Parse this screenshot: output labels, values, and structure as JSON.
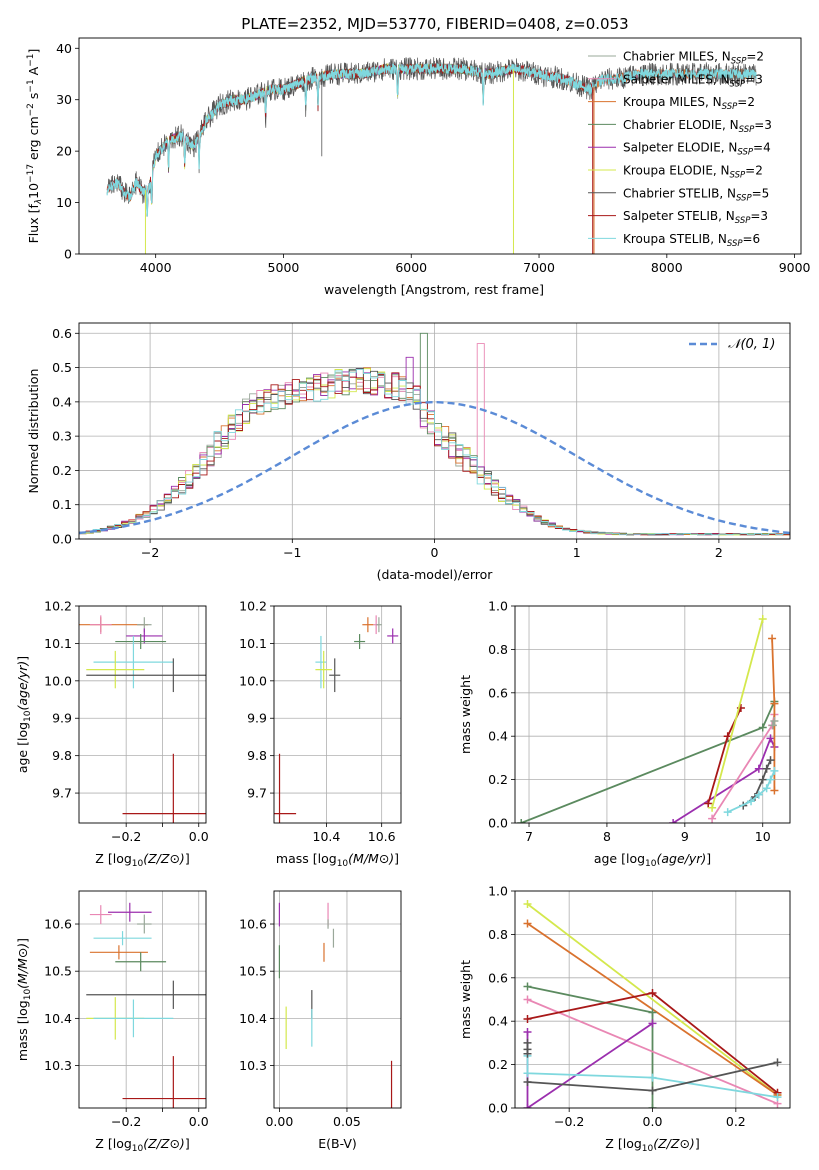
{
  "figure": {
    "title": "PLATE=2352, MJD=53770, FIBERID=0408, z=0.053"
  },
  "models": [
    {
      "name": "Chabrier MILES",
      "nssp": "2",
      "color": "#9aa89a"
    },
    {
      "name": "Salpeter MILES",
      "nssp": "3",
      "color": "#e987b4"
    },
    {
      "name": "Kroupa MILES",
      "nssp": "2",
      "color": "#d9722e"
    },
    {
      "name": "Chabrier ELODIE",
      "nssp": "3",
      "color": "#5b8a5f"
    },
    {
      "name": "Salpeter ELODIE",
      "nssp": "4",
      "color": "#9b2fae"
    },
    {
      "name": "Kroupa ELODIE",
      "nssp": "2",
      "color": "#d4e84d"
    },
    {
      "name": "Chabrier STELIB",
      "nssp": "5",
      "color": "#555555"
    },
    {
      "name": "Salpeter STELIB",
      "nssp": "3",
      "color": "#a81818"
    },
    {
      "name": "Kroupa STELIB",
      "nssp": "6",
      "color": "#7fd8de"
    }
  ],
  "chart_data": [
    {
      "id": "spectrum",
      "type": "line",
      "xlabel": "wavelength [Angstrom, rest frame]",
      "ylabel_parts": [
        "Flux [f",
        "λ",
        "10",
        "−17",
        " erg cm",
        "−2",
        " s",
        "−1",
        " A",
        "−1",
        "]"
      ],
      "xlim": [
        3400,
        9050
      ],
      "ylim": [
        0,
        42
      ],
      "xticks": [
        4000,
        5000,
        6000,
        7000,
        8000,
        9000
      ],
      "yticks": [
        0,
        10,
        20,
        30,
        40
      ],
      "legend_position": "right",
      "legend_suffix": "N",
      "legend_sub": "SSP",
      "continuum": {
        "x": [
          3600,
          3650,
          3700,
          3750,
          3800,
          3850,
          3900,
          3950,
          4000,
          4100,
          4200,
          4300,
          4400,
          4500,
          4600,
          4700,
          4800,
          4900,
          5000,
          5200,
          5400,
          5600,
          5800,
          6000,
          6200,
          6400,
          6600,
          6800,
          7000,
          7200,
          7300,
          7400,
          7500,
          7600,
          7800,
          8000,
          8200,
          8400,
          8600,
          8700
        ],
        "y": [
          12,
          13,
          14,
          12,
          11,
          14,
          12,
          13,
          19,
          22,
          23,
          21,
          26,
          29,
          30,
          30,
          31,
          32,
          32,
          34,
          35,
          35,
          36,
          36,
          36,
          36,
          35,
          36,
          35,
          34,
          33,
          32,
          34,
          34,
          35,
          35,
          35,
          35,
          35,
          35
        ]
      },
      "absorption_lines": [
        3934,
        3969,
        4101,
        4227,
        4340,
        4861,
        5175,
        5270,
        5893,
        6563
      ],
      "drops": [
        {
          "model": "Kroupa ELODIE",
          "x": 3920
        },
        {
          "model": "Kroupa ELODIE",
          "x": 6800
        },
        {
          "model": "Salpeter STELIB",
          "x": 7420
        },
        {
          "model": "Kroupa MILES",
          "x": 7430
        }
      ]
    },
    {
      "id": "residual-hist",
      "type": "line",
      "xlabel": "(data-model)/error",
      "ylabel": "Normed distribution",
      "xlim": [
        -2.5,
        2.5
      ],
      "ylim": [
        0,
        0.63
      ],
      "xticks": [
        -2,
        -1,
        0,
        1,
        2
      ],
      "yticks": [
        0.0,
        0.1,
        0.2,
        0.3,
        0.4,
        0.5,
        0.6
      ],
      "grid": true,
      "legend_position": "top-right",
      "reference_curve": {
        "label": "𝒩(0, 1)",
        "mean": 0,
        "sigma": 1,
        "color": "#5b8bd6"
      },
      "bin_width": 0.1,
      "bin_start": -2.5,
      "base_profile": [
        0.018,
        0.02,
        0.024,
        0.028,
        0.033,
        0.039,
        0.046,
        0.054,
        0.063,
        0.074,
        0.087,
        0.1,
        0.116,
        0.135,
        0.155,
        0.175,
        0.196,
        0.22,
        0.245,
        0.275,
        0.3,
        0.33,
        0.355,
        0.375,
        0.39,
        0.4,
        0.41,
        0.415,
        0.42,
        0.425,
        0.43,
        0.435,
        0.44,
        0.44,
        0.445,
        0.45,
        0.455,
        0.455,
        0.46,
        0.46,
        0.46,
        0.455,
        0.455,
        0.45,
        0.445,
        0.44,
        0.43,
        0.41,
        0.36,
        0.34,
        0.31,
        0.29,
        0.27,
        0.25,
        0.23,
        0.21,
        0.19,
        0.17,
        0.15,
        0.13,
        0.115,
        0.1,
        0.085,
        0.072,
        0.06,
        0.05,
        0.042,
        0.035,
        0.03,
        0.025,
        0.022,
        0.02,
        0.018,
        0.017,
        0.016,
        0.015,
        0.015,
        0.014,
        0.014,
        0.014,
        0.014,
        0.014,
        0.014,
        0.014,
        0.014,
        0.014,
        0.014,
        0.014,
        0.014,
        0.014,
        0.014,
        0.014,
        0.014,
        0.014,
        0.014,
        0.014,
        0.014,
        0.014,
        0.014,
        0.014
      ],
      "peak_bars": [
        {
          "model": "Chabrier ELODIE",
          "x": -0.1,
          "y": 0.6
        },
        {
          "model": "Salpeter MILES",
          "x": 0.3,
          "y": 0.57
        },
        {
          "model": "Salpeter ELODIE",
          "x": -0.2,
          "y": 0.53
        }
      ]
    },
    {
      "id": "age-vs-z",
      "type": "scatter",
      "xlabel": "Z [log10(Z/Z⊙)]",
      "ylabel": "age  [log10(age/yr)]",
      "xlim": [
        -0.33,
        0.02
      ],
      "ylim": [
        9.62,
        10.2
      ],
      "xticks": [
        -0.2,
        -0.1,
        0.0
      ],
      "xticklabels": [
        "−0.2",
        "",
        "0.0"
      ],
      "yticks": [
        9.7,
        9.8,
        9.9,
        10.0,
        10.1,
        10.2
      ],
      "grid": true,
      "points": [
        {
          "model": "Kroupa MILES",
          "x": -0.27,
          "y": 10.15,
          "xerr": 0.13,
          "yerr": 0.02
        },
        {
          "model": "Salpeter MILES",
          "x": -0.27,
          "y": 10.15,
          "xerr": 0.03,
          "yerr": 0.025
        },
        {
          "model": "Chabrier MILES",
          "x": -0.15,
          "y": 10.15,
          "xerr": 0.02,
          "yerr": 0.02
        },
        {
          "model": "Salpeter ELODIE",
          "x": -0.15,
          "y": 10.12,
          "xerr": 0.05,
          "yerr": 0.02
        },
        {
          "model": "Chabrier ELODIE",
          "x": -0.16,
          "y": 10.105,
          "xerr": 0.07,
          "yerr": 0.02
        },
        {
          "model": "Kroupa STELIB",
          "x": -0.18,
          "y": 10.05,
          "xerr": 0.11,
          "yerr": 0.07
        },
        {
          "model": "Kroupa ELODIE",
          "x": -0.23,
          "y": 10.03,
          "xerr": 0.08,
          "yerr": 0.05
        },
        {
          "model": "Chabrier STELIB",
          "x": -0.07,
          "y": 10.015,
          "xerr": 0.24,
          "yerr": 0.045
        },
        {
          "model": "Salpeter STELIB",
          "x": -0.07,
          "y": 9.645,
          "xerr": 0.14,
          "yerr": 0.16
        }
      ]
    },
    {
      "id": "age-vs-mass",
      "type": "scatter",
      "xlabel": "mass [log10(M/M⊙)]",
      "ylabel": "",
      "xlim": [
        10.21,
        10.67
      ],
      "ylim": [
        9.62,
        10.2
      ],
      "xticks": [
        10.4,
        10.6
      ],
      "yticks": [
        9.7,
        9.8,
        9.9,
        10.0,
        10.1,
        10.2
      ],
      "grid": true,
      "points": [
        {
          "model": "Kroupa MILES",
          "x": 10.55,
          "y": 10.15,
          "xerr": 0.02,
          "yerr": 0.02
        },
        {
          "model": "Salpeter MILES",
          "x": 10.58,
          "y": 10.15,
          "xerr": 0.01,
          "yerr": 0.025
        },
        {
          "model": "Chabrier MILES",
          "x": 10.59,
          "y": 10.15,
          "xerr": 0.01,
          "yerr": 0.02
        },
        {
          "model": "Salpeter ELODIE",
          "x": 10.64,
          "y": 10.12,
          "xerr": 0.02,
          "yerr": 0.02
        },
        {
          "model": "Chabrier ELODIE",
          "x": 10.52,
          "y": 10.105,
          "xerr": 0.02,
          "yerr": 0.02
        },
        {
          "model": "Kroupa STELIB",
          "x": 10.38,
          "y": 10.05,
          "xerr": 0.02,
          "yerr": 0.07
        },
        {
          "model": "Kroupa ELODIE",
          "x": 10.39,
          "y": 10.03,
          "xerr": 0.03,
          "yerr": 0.05
        },
        {
          "model": "Chabrier STELIB",
          "x": 10.43,
          "y": 10.015,
          "xerr": 0.02,
          "yerr": 0.045
        },
        {
          "model": "Salpeter STELIB",
          "x": 10.23,
          "y": 9.645,
          "xerr": 0.06,
          "yerr": 0.16
        }
      ]
    },
    {
      "id": "weight-vs-age",
      "type": "line",
      "xlabel": "age  [log10(age/yr)]",
      "ylabel": "mass weight",
      "xlim": [
        6.82,
        10.35
      ],
      "ylim": [
        0,
        1
      ],
      "xticks": [
        7,
        8,
        9,
        10
      ],
      "yticks": [
        0.0,
        0.2,
        0.4,
        0.6,
        0.8,
        1.0
      ],
      "grid": true,
      "series": [
        {
          "model": "Chabrier ELODIE",
          "x": [
            6.9,
            10.0,
            10.15
          ],
          "y": [
            0.0,
            0.44,
            0.56
          ]
        },
        {
          "model": "Salpeter ELODIE",
          "x": [
            8.85,
            9.95,
            10.1,
            10.15
          ],
          "y": [
            0.0,
            0.25,
            0.39,
            0.35
          ]
        },
        {
          "model": "Salpeter STELIB",
          "x": [
            9.3,
            9.55,
            9.72
          ],
          "y": [
            0.09,
            0.4,
            0.53
          ]
        },
        {
          "model": "Salpeter MILES",
          "x": [
            9.35,
            10.12,
            10.15
          ],
          "y": [
            0.02,
            0.45,
            0.5
          ]
        },
        {
          "model": "Kroupa ELODIE",
          "x": [
            9.35,
            10.0
          ],
          "y": [
            0.07,
            0.94
          ]
        },
        {
          "model": "Kroupa MILES",
          "x": [
            10.12,
            10.15,
            10.15
          ],
          "y": [
            0.85,
            0.55,
            0.15
          ]
        },
        {
          "model": "Chabrier STELIB",
          "x": [
            9.75,
            9.9,
            10.0,
            10.05,
            10.1
          ],
          "y": [
            0.08,
            0.12,
            0.2,
            0.25,
            0.29
          ]
        },
        {
          "model": "Kroupa STELIB",
          "x": [
            9.55,
            9.85,
            9.95,
            10.05,
            10.1,
            10.15
          ],
          "y": [
            0.05,
            0.1,
            0.13,
            0.16,
            0.2,
            0.24
          ]
        },
        {
          "model": "Chabrier MILES",
          "x": [
            10.13,
            10.15
          ],
          "y": [
            0.45,
            0.47
          ]
        }
      ]
    },
    {
      "id": "mass-vs-z",
      "type": "scatter",
      "xlabel": "Z [log10(Z/Z⊙)]",
      "ylabel": "mass [log10(M/M⊙)]",
      "xlim": [
        -0.33,
        0.02
      ],
      "ylim": [
        10.21,
        10.67
      ],
      "xticks": [
        -0.2,
        -0.1,
        0.0
      ],
      "xticklabels": [
        "−0.2",
        "",
        "0.0"
      ],
      "yticks": [
        10.3,
        10.4,
        10.5,
        10.6
      ],
      "grid": true,
      "points": [
        {
          "model": "Salpeter MILES",
          "x": -0.27,
          "y": 10.62,
          "xerr": 0.03,
          "yerr": 0.02
        },
        {
          "model": "Salpeter ELODIE",
          "x": -0.19,
          "y": 10.625,
          "xerr": 0.06,
          "yerr": 0.02
        },
        {
          "model": "Chabrier MILES",
          "x": -0.15,
          "y": 10.6,
          "xerr": 0.02,
          "yerr": 0.02
        },
        {
          "model": "Kroupa STELIB",
          "x": -0.21,
          "y": 10.57,
          "xerr": 0.08,
          "yerr": 0.015
        },
        {
          "model": "Kroupa MILES",
          "x": -0.22,
          "y": 10.54,
          "xerr": 0.08,
          "yerr": 0.015
        },
        {
          "model": "Chabrier ELODIE",
          "x": -0.16,
          "y": 10.52,
          "xerr": 0.07,
          "yerr": 0.02
        },
        {
          "model": "Chabrier STELIB",
          "x": -0.07,
          "y": 10.45,
          "xerr": 0.24,
          "yerr": 0.03
        },
        {
          "model": "Kroupa ELODIE",
          "x": -0.23,
          "y": 10.4,
          "xerr": 0.08,
          "yerr": 0.045
        },
        {
          "model": "Kroupa STELIB",
          "x": -0.18,
          "y": 10.4,
          "xerr": 0.11,
          "yerr": 0.04
        },
        {
          "model": "Salpeter STELIB",
          "x": -0.07,
          "y": 10.23,
          "xerr": 0.14,
          "yerr": 0.09
        }
      ]
    },
    {
      "id": "mass-vs-ebv",
      "type": "scatter",
      "xlabel": "E(B-V)",
      "ylabel": "",
      "xlim": [
        -0.004,
        0.09
      ],
      "ylim": [
        10.21,
        10.67
      ],
      "xticks": [
        0.0,
        0.05
      ],
      "xticklabels": [
        "0.00",
        "0.05"
      ],
      "yticks": [
        10.3,
        10.4,
        10.5,
        10.6
      ],
      "grid": true,
      "points": [
        {
          "model": "Salpeter ELODIE",
          "x": 0.0,
          "y": 10.62,
          "yerr": 0.025
        },
        {
          "model": "Chabrier ELODIE",
          "x": 0.0,
          "y": 10.52,
          "yerr": 0.035
        },
        {
          "model": "Salpeter MILES",
          "x": 0.036,
          "y": 10.62,
          "yerr": 0.025
        },
        {
          "model": "Chabrier MILES",
          "x": 0.036,
          "y": 10.6,
          "yerr": 0.01
        },
        {
          "model": "Kroupa MILES",
          "x": 0.033,
          "y": 10.54,
          "yerr": 0.02
        },
        {
          "model": "Chabrier MILES",
          "x": 0.04,
          "y": 10.57,
          "yerr": 0.02
        },
        {
          "model": "Kroupa ELODIE",
          "x": 0.005,
          "y": 10.38,
          "yerr": 0.045
        },
        {
          "model": "Chabrier STELIB",
          "x": 0.024,
          "y": 10.43,
          "yerr": 0.03
        },
        {
          "model": "Kroupa STELIB",
          "x": 0.024,
          "y": 10.38,
          "yerr": 0.04
        },
        {
          "model": "Salpeter STELIB",
          "x": 0.083,
          "y": 10.26,
          "yerr": 0.05
        }
      ]
    },
    {
      "id": "weight-vs-z",
      "type": "line",
      "xlabel": "Z [log10(Z/Z⊙)]",
      "ylabel": "mass weight",
      "xlim": [
        -0.33,
        0.33
      ],
      "ylim": [
        0,
        1
      ],
      "xticks": [
        -0.2,
        0.0,
        0.2
      ],
      "xticklabels": [
        "−0.2",
        "0.0",
        "0.2"
      ],
      "yticks": [
        0.0,
        0.2,
        0.4,
        0.6,
        0.8,
        1.0
      ],
      "grid": true,
      "series": [
        {
          "model": "Kroupa ELODIE",
          "x": [
            -0.3,
            0.3
          ],
          "y": [
            0.94,
            0.06
          ]
        },
        {
          "model": "Kroupa MILES",
          "x": [
            -0.3,
            0.3
          ],
          "y": [
            0.85,
            0.06
          ]
        },
        {
          "model": "Chabrier ELODIE",
          "x": [
            -0.3,
            0.0,
            0.0
          ],
          "y": [
            0.56,
            0.44,
            0.0
          ]
        },
        {
          "model": "Salpeter MILES",
          "x": [
            -0.3,
            0.3
          ],
          "y": [
            0.5,
            0.02
          ]
        },
        {
          "model": "Salpeter STELIB",
          "x": [
            -0.3,
            0.0,
            0.3
          ],
          "y": [
            0.41,
            0.53,
            0.07
          ]
        },
        {
          "model": "Salpeter ELODIE",
          "x": [
            -0.3,
            -0.3,
            0.0
          ],
          "y": [
            0.35,
            0.0,
            0.39
          ]
        },
        {
          "model": "Kroupa STELIB",
          "x": [
            -0.3,
            -0.3,
            0.0,
            0.3
          ],
          "y": [
            0.24,
            0.16,
            0.14,
            0.05
          ]
        },
        {
          "model": "Chabrier STELIB",
          "x": [
            -0.3,
            0.0,
            0.3
          ],
          "y": [
            0.12,
            0.08,
            0.21
          ]
        },
        {
          "model": "Chabrier STELIB",
          "x": [
            -0.3,
            -0.3,
            -0.3
          ],
          "y": [
            0.3,
            0.27,
            0.25
          ]
        }
      ]
    }
  ]
}
